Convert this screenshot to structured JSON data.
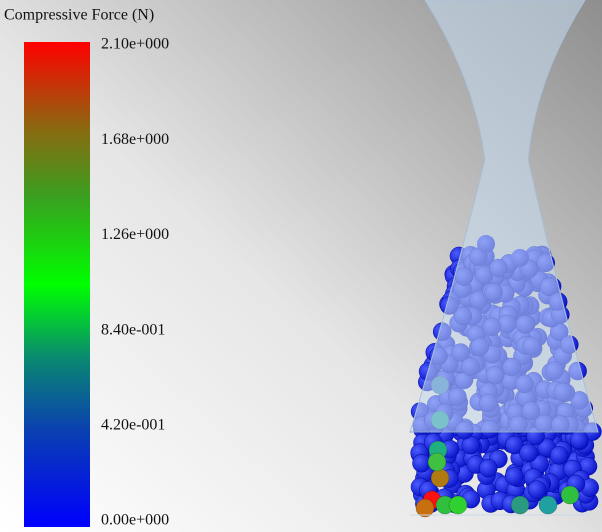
{
  "legend": {
    "title": "Compressive Force (N)",
    "range": [
      0,
      2.1
    ],
    "ticks": [
      {
        "value": 2.1,
        "label": "2.10e+000"
      },
      {
        "value": 1.68,
        "label": "1.68e+000"
      },
      {
        "value": 1.26,
        "label": "1.26e+000"
      },
      {
        "value": 0.84,
        "label": "8.40e-001"
      },
      {
        "value": 0.42,
        "label": "4.20e-001"
      },
      {
        "value": 0,
        "label": "0.00e+000"
      }
    ]
  }
}
